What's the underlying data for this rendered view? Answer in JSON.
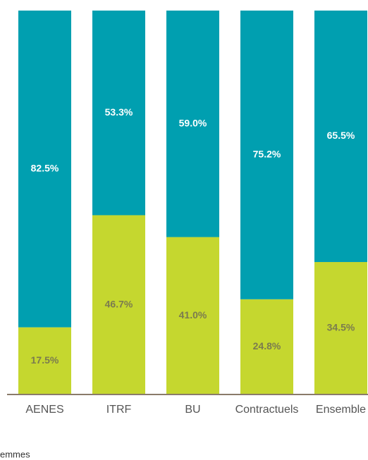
{
  "chart_data": {
    "type": "stacked_bar",
    "categories": [
      "AENES",
      "ITRF",
      "BU",
      "Contractuels",
      "Ensemble"
    ],
    "series": [
      {
        "color": "#c5d72f",
        "values": [
          17.5,
          46.7,
          41.0,
          24.8,
          34.5
        ],
        "value_labels": [
          "17.5%",
          "46.7%",
          "41.0%",
          "24.8%",
          "34.5%"
        ]
      },
      {
        "name": "emmes",
        "color": "#009fb0",
        "values": [
          82.5,
          53.3,
          59.0,
          75.2,
          65.5
        ],
        "value_labels": [
          "82.5%",
          "53.3%",
          "59.0%",
          "75.2%",
          "65.5%"
        ]
      }
    ],
    "ylim": [
      0,
      100
    ]
  }
}
